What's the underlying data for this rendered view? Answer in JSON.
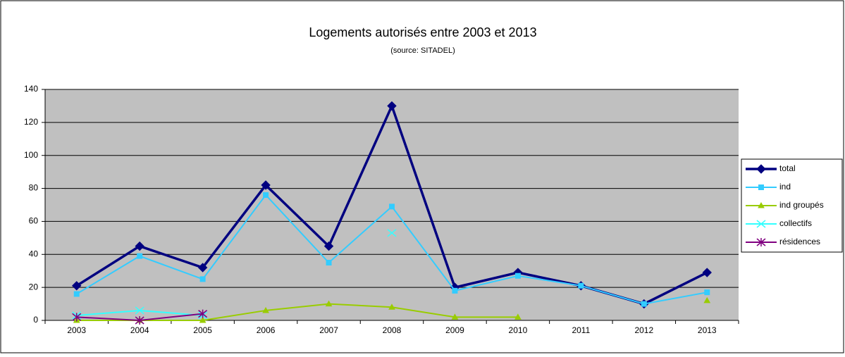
{
  "chart_data": {
    "type": "line",
    "title": "Logements autorisés entre 2003 et 2013",
    "subtitle": "(source: SITADEL)",
    "categories": [
      "2003",
      "2004",
      "2005",
      "2006",
      "2007",
      "2008",
      "2009",
      "2010",
      "2011",
      "2012",
      "2013"
    ],
    "series": [
      {
        "name": "total",
        "color": "#000080",
        "marker": "diamond",
        "values": [
          21,
          45,
          32,
          82,
          45,
          130,
          20,
          29,
          21,
          10,
          29
        ]
      },
      {
        "name": "ind",
        "color": "#33ccff",
        "marker": "square",
        "values": [
          16,
          39,
          25,
          76,
          35,
          69,
          18,
          27,
          21,
          10,
          17
        ]
      },
      {
        "name": "ind groupés",
        "color": "#99cc00",
        "marker": "triangle",
        "values": [
          0,
          0,
          0,
          6,
          10,
          8,
          2,
          2,
          null,
          null,
          12
        ]
      },
      {
        "name": "collectifs",
        "color": "#33ffff",
        "marker": "x",
        "values": [
          3,
          6,
          3,
          null,
          null,
          53,
          null,
          null,
          null,
          null,
          null
        ]
      },
      {
        "name": "résidences",
        "color": "#800080",
        "marker": "star",
        "values": [
          2,
          0,
          4,
          null,
          null,
          null,
          null,
          null,
          null,
          null,
          null
        ]
      }
    ],
    "ylim": [
      0,
      140
    ],
    "yticks": [
      0,
      20,
      40,
      60,
      80,
      100,
      120,
      140
    ],
    "grid": true,
    "legend": "right"
  }
}
